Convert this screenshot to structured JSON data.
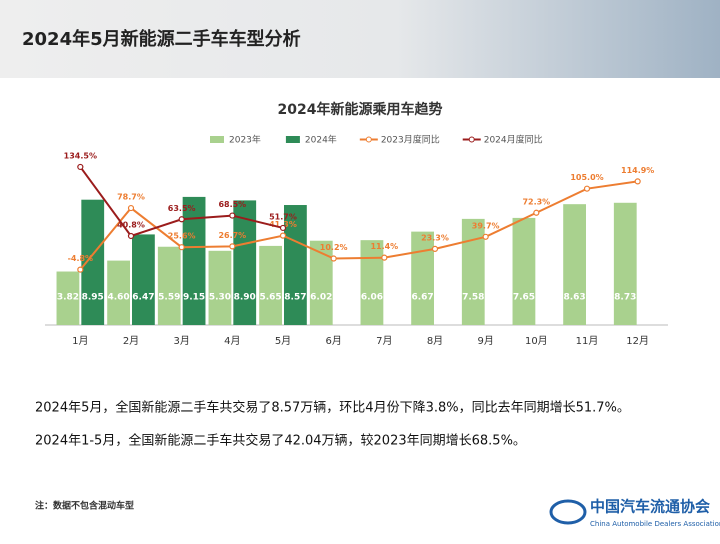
{
  "header": {
    "title": "2024年5月新能源二手车车型分析"
  },
  "chart_data": {
    "type": "bar",
    "title": "2024年新能源乘用车趋势",
    "categories": [
      "1月",
      "2月",
      "3月",
      "4月",
      "5月",
      "6月",
      "7月",
      "8月",
      "9月",
      "10月",
      "11月",
      "12月"
    ],
    "series": [
      {
        "name": "2023年",
        "type": "bar",
        "color": "#a9d18e",
        "values": [
          3.82,
          4.6,
          5.59,
          5.3,
          5.65,
          6.02,
          6.06,
          6.67,
          7.58,
          7.65,
          8.63,
          8.73
        ],
        "value_labels": [
          "3.82",
          "4.60",
          "5.59",
          "5.30",
          "5.65",
          "6.02",
          "6.06",
          "6.67",
          "7.58",
          "7.65",
          "8.63",
          "8.73"
        ]
      },
      {
        "name": "2024年",
        "type": "bar",
        "color": "#2e8b57",
        "values": [
          8.95,
          6.47,
          9.15,
          8.9,
          8.57,
          null,
          null,
          null,
          null,
          null,
          null,
          null
        ],
        "value_labels": [
          "8.95",
          "6.47",
          "9.15",
          "8.90",
          "8.57",
          null,
          null,
          null,
          null,
          null,
          null,
          null
        ]
      },
      {
        "name": "2023月度同比",
        "type": "line",
        "axis": "y2",
        "color": "#ed7d31",
        "values": [
          -4.8,
          78.7,
          25.6,
          26.7,
          41.3,
          10.2,
          11.4,
          23.3,
          39.7,
          72.3,
          105.0,
          114.9
        ],
        "value_labels": [
          "-4.8%",
          "78.7%",
          "25.6%",
          "26.7%",
          "41.3%",
          "10.2%",
          "11.4%",
          "23.3%",
          "39.7%",
          "72.3%",
          "105.0%",
          "114.9%"
        ]
      },
      {
        "name": "2024月度同比",
        "type": "line",
        "axis": "y2",
        "color": "#9b1c1c",
        "values": [
          134.5,
          40.8,
          63.5,
          68.5,
          51.7,
          null,
          null,
          null,
          null,
          null,
          null,
          null
        ],
        "value_labels": [
          "134.5%",
          "40.8%",
          "63.5%",
          "68.5%",
          "51.7%",
          null,
          null,
          null,
          null,
          null,
          null,
          null
        ]
      }
    ],
    "ylim": [
      0,
      10
    ],
    "y2lim": [
      -80,
      110
    ],
    "legend": "top"
  },
  "text": {
    "p1": "2024年5月，全国新能源二手车共交易了8.57万辆，环比4月份下降3.8%，同比去年同期增长51.7%。",
    "p2": "2024年1-5月，全国新能源二手车共交易了42.04万辆，较2023年同期增长68.5%。",
    "note": "注：数据不包含混动车型",
    "logo_cn": "中国汽车流通协会",
    "logo_en": "China Automobile Dealers Association"
  }
}
